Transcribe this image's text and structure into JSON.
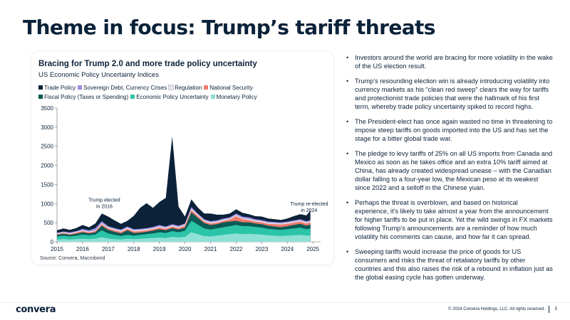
{
  "page": {
    "title": "Theme in focus: Trump’s tariff threats",
    "logo": "convera",
    "copyright": "© 2024 Convera Holdings, LLC. All rights reserved.",
    "page_number": "5"
  },
  "bullets": [
    "Investors around the world are bracing for more volatility in the wake of the US election result.",
    "Trump’s resounding election win is already introducing volatility into currency markets as his “clean red sweep” clears the way for tariffs and protectionist trade policies that were the hallmark of his first term, whereby trade policy uncertainty spiked to record highs.",
    "The President-elect has once again wasted no time in threatening to impose steep tariffs on goods imported into the US and has set the stage for a bitter global trade war.",
    "The pledge to levy tariffs of 25% on all US imports from Canada and Mexico as soon as he takes office and an extra 10% tariff aimed at China, has already created widespread unease – with the Canadian dollar falling to a four-year low, the Mexican peso at its weakest since 2022 and a selloff in the Chinese yuan.",
    "Perhaps the threat is overblown, and based on historical experience, it’s likely to take almost a year from the announcement for higher tariffs to be put in place. Yet the wild swings in FX markets following Trump’s announcements are a reminder of how much volatility his comments can cause, and how far it can spread.",
    "Sweeping tariffs would increase the price of goods for US consumers and risks the threat of retaliatory tariffs by other countries and this also raises the risk of a rebound in inflation just as the global easing cycle has gotten underway."
  ],
  "chart_data": {
    "type": "area",
    "stacked": true,
    "title": "Bracing for Trump 2.0 and more trade policy uncertainty",
    "subtitle": "US Economic Policy Uncertainty Indices",
    "source": "Source: Convera, Macrobond",
    "xlim": [
      2015,
      2025.3
    ],
    "ylim": [
      0,
      3500
    ],
    "x_ticks": [
      "2015",
      "2016",
      "2017",
      "2018",
      "2019",
      "2020",
      "2021",
      "2022",
      "2023",
      "2024",
      "2025"
    ],
    "y_ticks": [
      "0",
      "500",
      "1000",
      "1500",
      "2000",
      "2500",
      "3000",
      "3500"
    ],
    "grid": false,
    "legend_position": "top",
    "annotations": [
      {
        "text": "Trump elected in 2016",
        "x": 2016.85,
        "y": 1050
      },
      {
        "text": "Trump re-elected in 2024",
        "x": 2024.85,
        "y": 950
      }
    ],
    "x": [
      2015.0,
      2015.25,
      2015.5,
      2015.75,
      2016.0,
      2016.25,
      2016.5,
      2016.75,
      2017.0,
      2017.25,
      2017.5,
      2017.75,
      2018.0,
      2018.25,
      2018.5,
      2018.75,
      2019.0,
      2019.25,
      2019.5,
      2019.75,
      2020.0,
      2020.25,
      2020.5,
      2020.75,
      2021.0,
      2021.25,
      2021.5,
      2021.75,
      2022.0,
      2022.25,
      2022.5,
      2022.75,
      2023.0,
      2023.25,
      2023.5,
      2023.75,
      2024.0,
      2024.25,
      2024.5,
      2024.75,
      2024.9
    ],
    "series": [
      {
        "name": "Monetary Policy",
        "color": "#8fe0d6",
        "values": [
          60,
          70,
          60,
          70,
          80,
          70,
          80,
          120,
          90,
          70,
          60,
          80,
          70,
          80,
          90,
          100,
          110,
          100,
          130,
          110,
          130,
          250,
          200,
          150,
          140,
          160,
          180,
          200,
          220,
          200,
          210,
          200,
          190,
          170,
          160,
          150,
          160,
          170,
          180,
          160,
          170
        ]
      },
      {
        "name": "Economic Policy Uncertainty",
        "color": "#2bc4a8",
        "values": [
          80,
          90,
          80,
          90,
          110,
          100,
          110,
          180,
          130,
          110,
          90,
          100,
          90,
          100,
          110,
          120,
          140,
          130,
          150,
          140,
          160,
          300,
          250,
          200,
          180,
          190,
          200,
          210,
          220,
          210,
          200,
          190,
          180,
          170,
          160,
          160,
          170,
          180,
          190,
          170,
          180
        ]
      },
      {
        "name": "Fiscal Policy (Taxes or Spending)",
        "color": "#0a5a55",
        "values": [
          40,
          50,
          40,
          50,
          60,
          50,
          60,
          120,
          90,
          80,
          70,
          120,
          70,
          60,
          60,
          70,
          80,
          70,
          80,
          70,
          80,
          220,
          180,
          140,
          120,
          110,
          130,
          120,
          110,
          100,
          100,
          90,
          90,
          80,
          80,
          70,
          80,
          90,
          100,
          90,
          100
        ]
      },
      {
        "name": "National Security",
        "color": "#f07a6c",
        "values": [
          20,
          20,
          20,
          30,
          30,
          30,
          30,
          40,
          40,
          40,
          40,
          40,
          40,
          40,
          40,
          40,
          40,
          40,
          40,
          40,
          50,
          60,
          50,
          40,
          40,
          40,
          40,
          50,
          120,
          80,
          60,
          50,
          50,
          50,
          60,
          70,
          60,
          60,
          60,
          60,
          60
        ]
      },
      {
        "name": "Regulation",
        "color": "#e4e4ea",
        "values": [
          20,
          20,
          20,
          20,
          20,
          20,
          20,
          30,
          30,
          30,
          30,
          30,
          30,
          30,
          30,
          30,
          30,
          30,
          30,
          30,
          30,
          40,
          30,
          30,
          30,
          30,
          30,
          30,
          30,
          30,
          30,
          30,
          30,
          30,
          30,
          30,
          30,
          30,
          30,
          30,
          30
        ]
      },
      {
        "name": "Sovereign Debt, Currency Crises",
        "color": "#9b8be0",
        "values": [
          20,
          20,
          30,
          20,
          40,
          30,
          60,
          50,
          30,
          30,
          30,
          30,
          30,
          30,
          30,
          30,
          40,
          30,
          30,
          30,
          30,
          40,
          30,
          30,
          30,
          30,
          30,
          30,
          40,
          40,
          40,
          30,
          30,
          30,
          30,
          30,
          30,
          30,
          30,
          30,
          30
        ]
      },
      {
        "name": "Trade Policy",
        "color": "#0b2239",
        "values": [
          60,
          80,
          60,
          80,
          100,
          80,
          120,
          200,
          250,
          200,
          150,
          150,
          350,
          550,
          650,
          500,
          600,
          750,
          2300,
          500,
          180,
          200,
          160,
          150,
          200,
          150,
          100,
          100,
          110,
          100,
          80,
          80,
          90,
          80,
          70,
          60,
          80,
          110,
          130,
          150,
          250
        ]
      }
    ]
  }
}
